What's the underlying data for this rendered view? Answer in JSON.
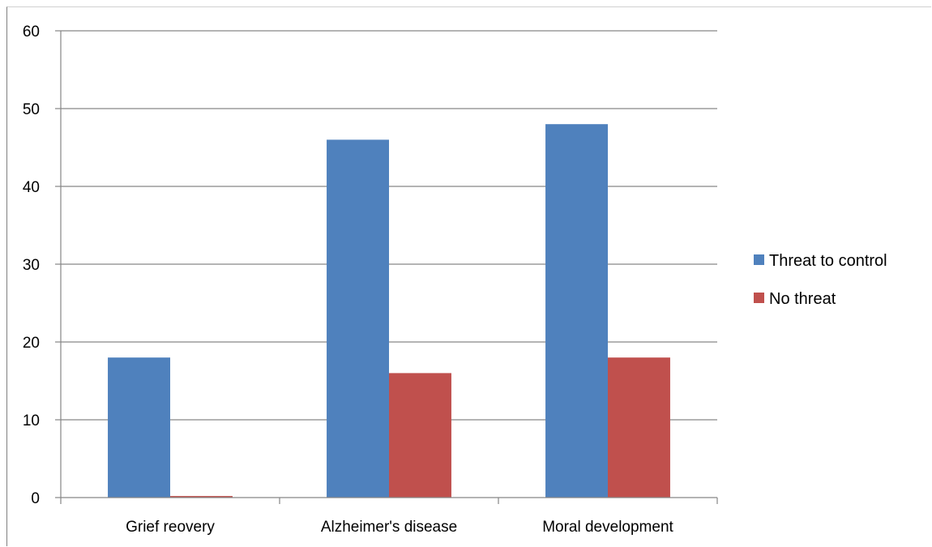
{
  "chart_data": {
    "type": "bar",
    "categories": [
      "Grief reovery",
      "Alzheimer's disease",
      "Moral development"
    ],
    "series": [
      {
        "name": "Threat to control",
        "color": "#4F81BD",
        "values": [
          18,
          46,
          48
        ]
      },
      {
        "name": "No threat",
        "color": "#C0504D",
        "values": [
          0.2,
          16,
          18
        ]
      }
    ],
    "y_ticks": [
      "0",
      "10",
      "20",
      "30",
      "40",
      "50",
      "60"
    ],
    "ylim": [
      0,
      60
    ],
    "grid": true,
    "legend_position": "right",
    "title": "",
    "xlabel": "",
    "ylabel": ""
  }
}
